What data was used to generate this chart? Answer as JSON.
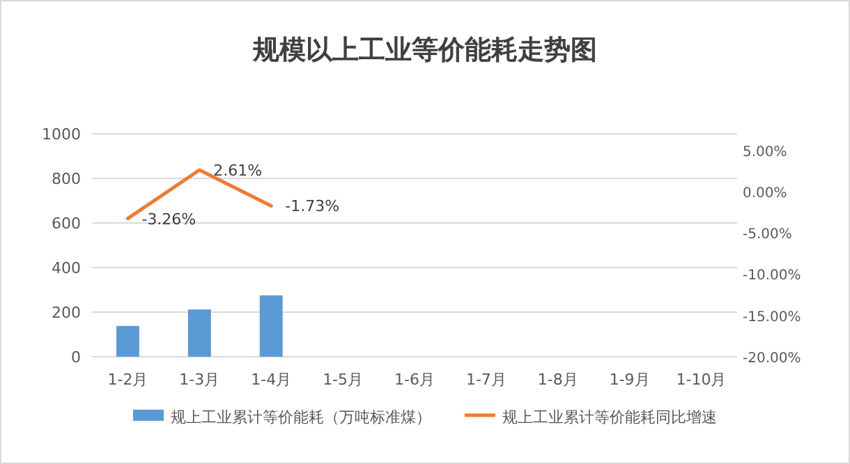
{
  "chart_data": {
    "type": "bar",
    "title": "规模以上工业等价能耗走势图",
    "categories": [
      "1-2月",
      "1-3月",
      "1-4月",
      "1-5月",
      "1-6月",
      "1-7月",
      "1-8月",
      "1-9月",
      "1-10月"
    ],
    "series": [
      {
        "name": "规上工业累计等价能耗（万吨标准煤）",
        "color": "#5b9bd5",
        "values": [
          138,
          212,
          275,
          null,
          null,
          null,
          null,
          null,
          null
        ]
      },
      {
        "name": "规上工业累计等价能耗同比增速",
        "type": "line",
        "axis": "y2",
        "color": "#ed7d31",
        "values": [
          -3.26,
          2.61,
          -1.73,
          null,
          null,
          null,
          null,
          null,
          null
        ],
        "value_labels": [
          "-3.26%",
          "2.61%",
          "-1.73%",
          null,
          null,
          null,
          null,
          null,
          null
        ]
      }
    ],
    "ylim": [
      0,
      1000
    ],
    "yticks": [
      0,
      200,
      400,
      600,
      800,
      1000
    ],
    "y2lim": [
      -20,
      7
    ],
    "y2ticks": [
      {
        "value": -20,
        "label": "-20.00%"
      },
      {
        "value": -15,
        "label": "-15.00%"
      },
      {
        "value": -10,
        "label": "-10.00%"
      },
      {
        "value": -5,
        "label": "-5.00%"
      },
      {
        "value": 0,
        "label": "0.00%"
      },
      {
        "value": 5,
        "label": "5.00%"
      }
    ],
    "grid": "y",
    "legend": "bottom",
    "marker": "none"
  }
}
